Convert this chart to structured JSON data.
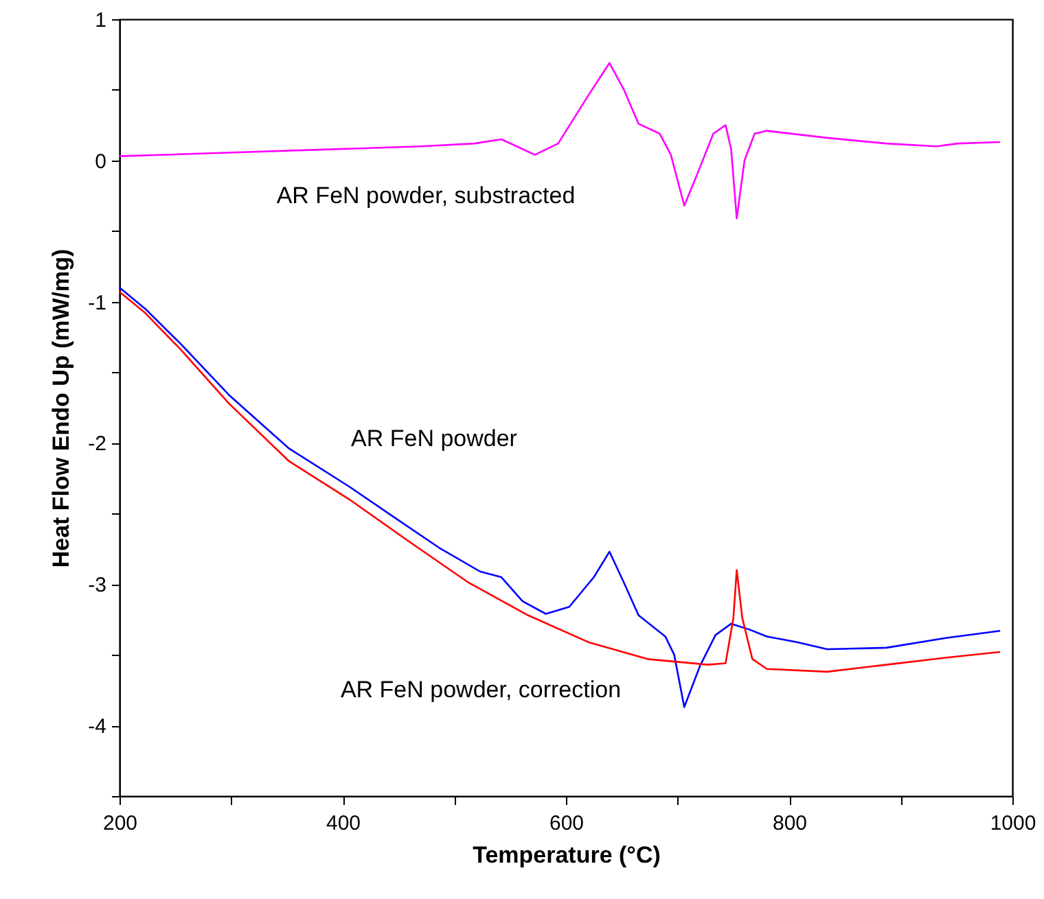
{
  "chart_data": {
    "type": "line",
    "xlabel": "Temperature (°C)",
    "ylabel": "Heat Flow Endo Up (mW/mg)",
    "xlim": [
      200,
      1000
    ],
    "ylim": [
      -4.5,
      1
    ],
    "xticks": [
      200,
      {
        "value": 300,
        "label": null
      },
      400,
      {
        "value": 500,
        "label": null
      },
      600,
      {
        "value": 700,
        "label": null
      },
      800,
      {
        "value": 900,
        "label": null
      },
      1000
    ],
    "yticks": [
      {
        "value": -4.5,
        "label": null
      },
      -4,
      {
        "value": -3.5,
        "label": null
      },
      -3,
      {
        "value": -2.5,
        "label": null
      },
      -2,
      {
        "value": -1.5,
        "label": null
      },
      -1,
      {
        "value": -0.5,
        "label": null
      },
      0,
      {
        "value": 0.5,
        "label": null
      },
      1
    ],
    "grid": false,
    "marker": "none",
    "line_style": "solid",
    "annotations": [
      "AR FeN powder, substracted",
      "AR FeN powder",
      "AR FeN powder, correction"
    ],
    "series": [
      {
        "color": "#ff00ff",
        "x": [
          200,
          470,
          518,
          542,
          556,
          572,
          593,
          620,
          639,
          652,
          665,
          684,
          694,
          706,
          718,
          732,
          743,
          748,
          753,
          760,
          769,
          780,
          834,
          887,
          932,
          951,
          989
        ],
        "values": [
          0.03,
          0.1,
          0.12,
          0.15,
          0.1,
          0.04,
          0.12,
          0.46,
          0.69,
          0.5,
          0.26,
          0.19,
          0.04,
          -0.32,
          -0.09,
          0.19,
          0.25,
          0.08,
          -0.41,
          0.0,
          0.19,
          0.21,
          0.16,
          0.12,
          0.1,
          0.12,
          0.13
        ]
      },
      {
        "color": "#0000ff",
        "x": [
          200,
          223,
          255,
          298,
          352,
          406,
          443,
          486,
          523,
          542,
          561,
          582,
          603,
          625,
          639,
          652,
          665,
          689,
          697,
          706,
          720,
          734,
          748,
          764,
          780,
          807,
          834,
          887,
          941,
          989
        ],
        "values": [
          -0.9,
          -1.05,
          -1.3,
          -1.66,
          -2.04,
          -2.31,
          -2.51,
          -2.74,
          -2.91,
          -2.95,
          -3.12,
          -3.21,
          -3.16,
          -2.95,
          -2.77,
          -2.99,
          -3.22,
          -3.37,
          -3.5,
          -3.87,
          -3.58,
          -3.36,
          -3.28,
          -3.32,
          -3.37,
          -3.41,
          -3.46,
          -3.45,
          -3.38,
          -3.33
        ]
      },
      {
        "color": "#ff0000",
        "x": [
          200,
          223,
          255,
          298,
          352,
          406,
          458,
          513,
          566,
          620,
          673,
          727,
          743,
          750,
          753,
          758,
          767,
          780,
          834,
          887,
          941,
          989
        ],
        "values": [
          -0.93,
          -1.08,
          -1.34,
          -1.72,
          -2.13,
          -2.4,
          -2.69,
          -2.99,
          -3.22,
          -3.41,
          -3.53,
          -3.57,
          -3.56,
          -3.24,
          -2.9,
          -3.24,
          -3.53,
          -3.6,
          -3.62,
          -3.57,
          -3.52,
          -3.48
        ]
      }
    ]
  }
}
